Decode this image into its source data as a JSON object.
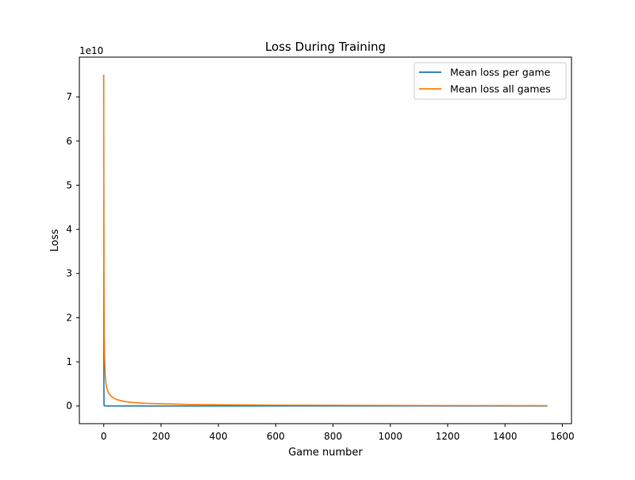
{
  "chart_data": {
    "type": "line",
    "title": "Loss During Training",
    "xlabel": "Game number",
    "ylabel": "Loss",
    "y_offset_label": "1e10",
    "xlim": [
      -85,
      1632
    ],
    "ylim": [
      -0.4,
      7.9
    ],
    "x_ticks": [
      0,
      200,
      400,
      600,
      800,
      1000,
      1200,
      1400,
      1600
    ],
    "y_ticks": [
      0,
      1,
      2,
      3,
      4,
      5,
      6,
      7
    ],
    "grid": false,
    "legend_position": "top-right",
    "series": [
      {
        "name": "Mean loss per game",
        "color": "#1f77b4",
        "x": [
          0,
          0.2,
          0.5,
          1,
          2,
          3,
          5,
          10,
          20,
          50,
          100,
          200,
          400,
          600,
          800,
          1000,
          1200,
          1400,
          1548
        ],
        "y": [
          7.5,
          4.5,
          0.6,
          0.02,
          0.005,
          0.003,
          0.002,
          0.001,
          0.001,
          0.001,
          0.0,
          0.0,
          0.0,
          0.0,
          0.0,
          0.0,
          0.0,
          0.0,
          0.0
        ]
      },
      {
        "name": "Mean loss all games",
        "color": "#ff7f0e",
        "x": [
          0,
          0.3,
          0.7,
          1,
          2,
          3,
          5,
          7,
          10,
          15,
          20,
          30,
          40,
          60,
          80,
          100,
          150,
          200,
          300,
          400,
          600,
          800,
          1000,
          1200,
          1400,
          1548
        ],
        "y": [
          7.5,
          5.0,
          3.2,
          2.6,
          1.6,
          1.1,
          0.75,
          0.55,
          0.42,
          0.32,
          0.26,
          0.2,
          0.16,
          0.12,
          0.095,
          0.08,
          0.06,
          0.05,
          0.035,
          0.028,
          0.02,
          0.016,
          0.013,
          0.011,
          0.009,
          0.008
        ]
      }
    ]
  }
}
